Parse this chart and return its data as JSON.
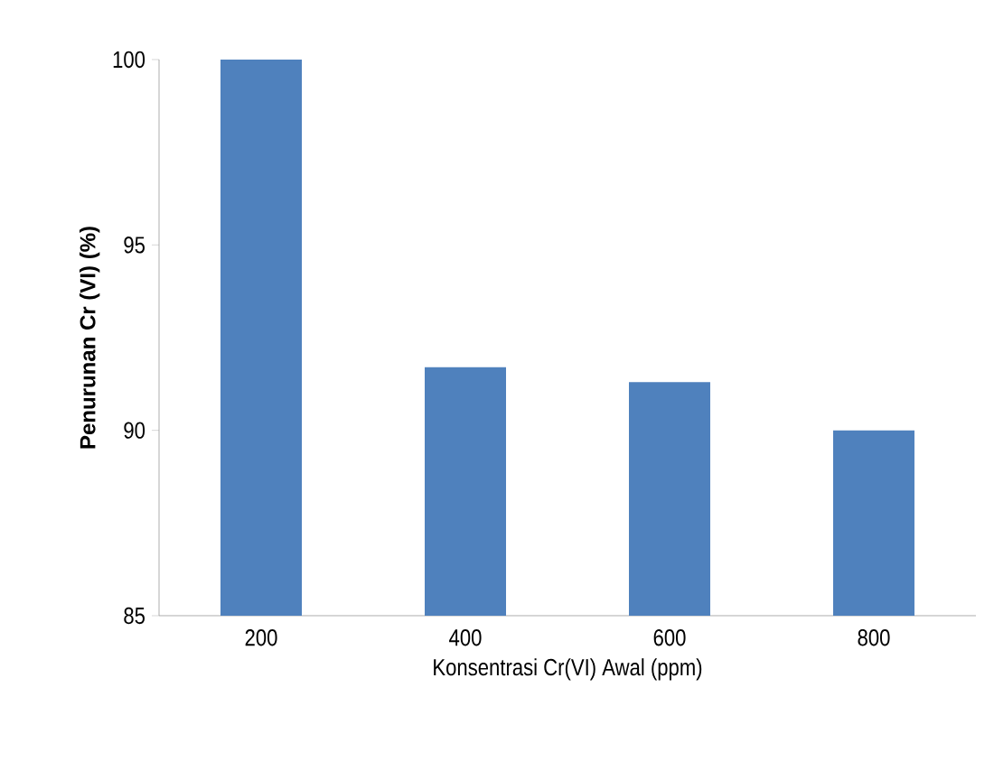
{
  "chart_data": {
    "type": "bar",
    "xlabel": "Konsentrasi Cr(VI) Awal (ppm)",
    "ylabel": "Penurunan Cr (VI) (%)",
    "categories": [
      "200",
      "400",
      "600",
      "800"
    ],
    "values": [
      100,
      91.7,
      91.3,
      90
    ],
    "color": "#4f81bd",
    "ylim": [
      85,
      100
    ],
    "yticks": [
      85,
      90,
      95,
      100
    ],
    "grid": false
  }
}
